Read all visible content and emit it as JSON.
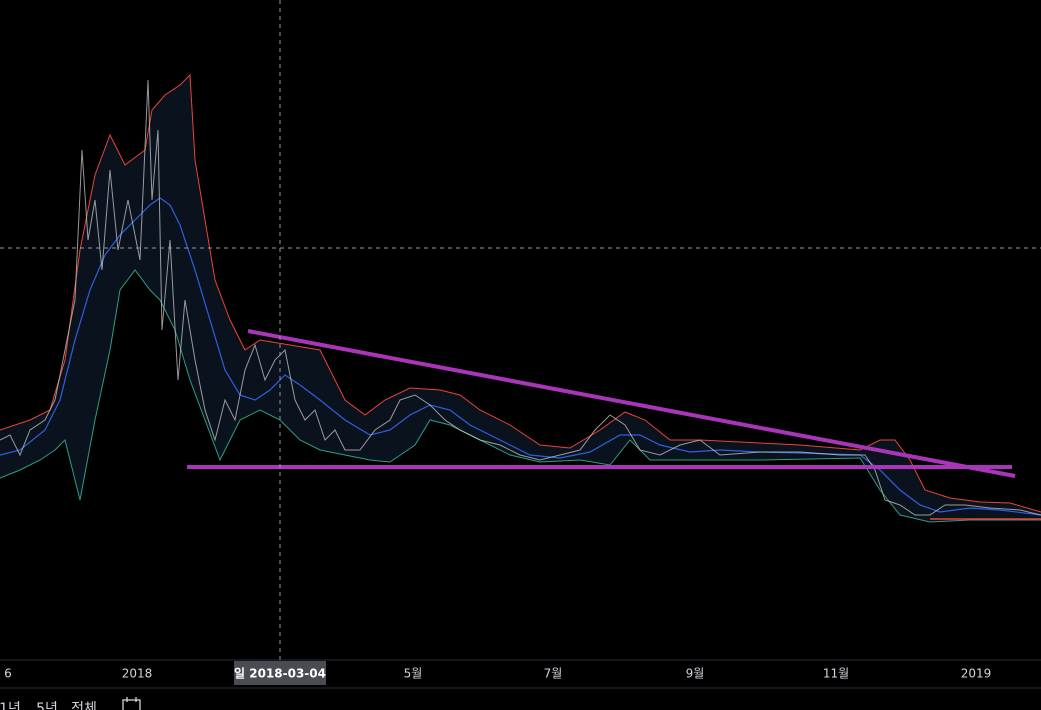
{
  "x_axis": {
    "labels": [
      "6",
      "2018",
      "5월",
      "7월",
      "9월",
      "11월",
      "2019"
    ]
  },
  "crosshair": {
    "label": "일 2018-03-04"
  },
  "toolbar": {
    "items": [
      "1년",
      "5년",
      "전체"
    ]
  }
}
